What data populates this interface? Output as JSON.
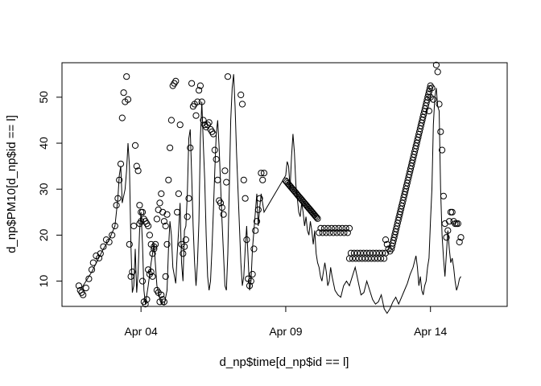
{
  "chart_data": {
    "type": "scatter",
    "title": "",
    "xlabel": "d_np$time[d_np$id == l]",
    "ylabel": "d_np$PM10[d_np$id == l]",
    "x_unit": "days of April (x = 1 is Apr 01 00:00)",
    "xlim": [
      1.27,
      16.65
    ],
    "ylim": [
      4.5,
      57.5
    ],
    "x_ticks": [
      {
        "value": 4,
        "label": "Apr 04"
      },
      {
        "value": 9,
        "label": "Apr 09"
      },
      {
        "value": 14,
        "label": "Apr 14"
      }
    ],
    "y_ticks": [
      10,
      20,
      30,
      40,
      50
    ],
    "grid": false,
    "legend": "none",
    "colors": {
      "points": "#000000",
      "line": "#000000",
      "axis": "#000000"
    },
    "points": [
      [
        1.85,
        9
      ],
      [
        1.9,
        8
      ],
      [
        1.95,
        7.5
      ],
      [
        2.0,
        7
      ],
      [
        2.1,
        8.5
      ],
      [
        2.2,
        10.5
      ],
      [
        2.3,
        12.5
      ],
      [
        2.35,
        14
      ],
      [
        2.45,
        15.5
      ],
      [
        2.55,
        15
      ],
      [
        2.6,
        16
      ],
      [
        2.7,
        17.5
      ],
      [
        2.8,
        19
      ],
      [
        2.9,
        18.5
      ],
      [
        3.0,
        20
      ],
      [
        3.1,
        22
      ],
      [
        3.15,
        26.5
      ],
      [
        3.2,
        28
      ],
      [
        3.25,
        32
      ],
      [
        3.3,
        35.5
      ],
      [
        3.35,
        45.5
      ],
      [
        3.4,
        51
      ],
      [
        3.45,
        49
      ],
      [
        3.5,
        54.5
      ],
      [
        3.55,
        49.5
      ],
      [
        3.6,
        18
      ],
      [
        3.65,
        11
      ],
      [
        3.7,
        12
      ],
      [
        3.75,
        22
      ],
      [
        3.8,
        39.5
      ],
      [
        3.85,
        35
      ],
      [
        3.9,
        34
      ],
      [
        3.95,
        26.5
      ],
      [
        4.0,
        23
      ],
      [
        4.05,
        10
      ],
      [
        4.1,
        5.5
      ],
      [
        4.15,
        5
      ],
      [
        4.2,
        6
      ],
      [
        4.25,
        12.5
      ],
      [
        4.3,
        11.5
      ],
      [
        4.35,
        12
      ],
      [
        4.4,
        11
      ],
      [
        4.45,
        17
      ],
      [
        4.5,
        18
      ],
      [
        4.55,
        8
      ],
      [
        4.6,
        7.5
      ],
      [
        4.65,
        5.5
      ],
      [
        4.7,
        7
      ],
      [
        4.75,
        6
      ],
      [
        4.8,
        5.5
      ],
      [
        4.85,
        11
      ],
      [
        4.9,
        18
      ],
      [
        3.95,
        22.5
      ],
      [
        4.0,
        25
      ],
      [
        4.05,
        25
      ],
      [
        4.1,
        23.5
      ],
      [
        4.15,
        23
      ],
      [
        4.2,
        22.5
      ],
      [
        4.25,
        22
      ],
      [
        4.3,
        20
      ],
      [
        4.35,
        18
      ],
      [
        4.4,
        16
      ],
      [
        4.45,
        17.5
      ],
      [
        4.55,
        23.5
      ],
      [
        4.6,
        25.5
      ],
      [
        4.65,
        27
      ],
      [
        4.7,
        29
      ],
      [
        4.75,
        25
      ],
      [
        4.8,
        23
      ],
      [
        4.85,
        22
      ],
      [
        4.9,
        24.5
      ],
      [
        4.95,
        32
      ],
      [
        5.0,
        39
      ],
      [
        5.05,
        45
      ],
      [
        5.1,
        52.5
      ],
      [
        5.15,
        53
      ],
      [
        5.2,
        53.5
      ],
      [
        5.25,
        25
      ],
      [
        5.3,
        29
      ],
      [
        5.35,
        44
      ],
      [
        5.4,
        18
      ],
      [
        5.45,
        16
      ],
      [
        5.5,
        17.5
      ],
      [
        5.55,
        19
      ],
      [
        5.6,
        24
      ],
      [
        5.65,
        28
      ],
      [
        5.7,
        39
      ],
      [
        5.75,
        53
      ],
      [
        5.8,
        48
      ],
      [
        5.85,
        48.5
      ],
      [
        5.9,
        46
      ],
      [
        5.95,
        49
      ],
      [
        6.0,
        51.5
      ],
      [
        6.05,
        52.5
      ],
      [
        6.1,
        49
      ],
      [
        6.15,
        45
      ],
      [
        6.2,
        44
      ],
      [
        6.25,
        43.5
      ],
      [
        6.3,
        44
      ],
      [
        6.35,
        44.5
      ],
      [
        6.4,
        43
      ],
      [
        6.45,
        42.5
      ],
      [
        6.5,
        42
      ],
      [
        6.55,
        38.5
      ],
      [
        6.6,
        36.5
      ],
      [
        6.65,
        32
      ],
      [
        6.7,
        27.5
      ],
      [
        6.75,
        27
      ],
      [
        6.8,
        26
      ],
      [
        6.85,
        24.5
      ],
      [
        6.9,
        34
      ],
      [
        6.95,
        31.5
      ],
      [
        7.0,
        54.5
      ],
      [
        7.45,
        50.5
      ],
      [
        7.5,
        48.5
      ],
      [
        7.55,
        32
      ],
      [
        7.6,
        28
      ],
      [
        7.65,
        19
      ],
      [
        7.7,
        10.5
      ],
      [
        7.75,
        9
      ],
      [
        7.8,
        10
      ],
      [
        7.85,
        11.5
      ],
      [
        7.9,
        17
      ],
      [
        7.95,
        21
      ],
      [
        8.0,
        23
      ],
      [
        8.05,
        25.5
      ],
      [
        8.1,
        28
      ],
      [
        8.15,
        33.5
      ],
      [
        8.2,
        32
      ],
      [
        8.25,
        33.5
      ],
      [
        12.45,
        19
      ],
      [
        12.5,
        18
      ],
      [
        12.55,
        17
      ],
      [
        12.6,
        16.5
      ],
      [
        13.95,
        47
      ],
      [
        14.0,
        50
      ],
      [
        14.05,
        52
      ],
      [
        14.1,
        49.5
      ],
      [
        14.2,
        57
      ],
      [
        14.25,
        55.5
      ],
      [
        14.3,
        48.5
      ],
      [
        14.35,
        42.5
      ],
      [
        14.4,
        38.5
      ],
      [
        14.45,
        28.5
      ],
      [
        14.5,
        22.5
      ],
      [
        14.55,
        19.5
      ],
      [
        14.6,
        21
      ],
      [
        14.65,
        23
      ],
      [
        14.7,
        25
      ],
      [
        14.75,
        25
      ],
      [
        14.8,
        23
      ],
      [
        14.85,
        22.5
      ],
      [
        14.9,
        22.5
      ],
      [
        14.95,
        22.5
      ],
      [
        15.0,
        18.5
      ],
      [
        15.05,
        19.5
      ]
    ],
    "point_runs": [
      {
        "x_start": 9.0,
        "x_end": 10.1,
        "y_start": 31.8,
        "y_end": 23.6,
        "count": 32
      },
      {
        "x_start": 10.15,
        "x_end": 11.2,
        "y": 21,
        "count": 18
      },
      {
        "x_start": 11.2,
        "x_end": 12.45,
        "y": 15.5,
        "count": 24
      },
      {
        "x_start": 12.65,
        "x_end": 14.0,
        "y_start": 17,
        "y_end": 52.5,
        "count": 58
      }
    ],
    "line": [
      [
        1.9,
        8
      ],
      [
        2.1,
        10
      ],
      [
        2.3,
        12
      ],
      [
        2.5,
        14.5
      ],
      [
        2.7,
        17
      ],
      [
        2.9,
        19
      ],
      [
        3.1,
        22
      ],
      [
        3.2,
        28
      ],
      [
        3.25,
        33
      ],
      [
        3.3,
        35
      ],
      [
        3.35,
        27
      ],
      [
        3.45,
        30
      ],
      [
        3.5,
        34
      ],
      [
        3.55,
        40
      ],
      [
        3.6,
        35
      ],
      [
        3.65,
        18
      ],
      [
        3.7,
        7.5
      ],
      [
        3.75,
        9
      ],
      [
        3.8,
        17
      ],
      [
        3.85,
        7.5
      ],
      [
        3.9,
        12
      ],
      [
        3.95,
        21
      ],
      [
        4.0,
        25
      ],
      [
        4.05,
        18
      ],
      [
        4.1,
        8
      ],
      [
        4.15,
        5
      ],
      [
        4.25,
        9
      ],
      [
        4.35,
        14
      ],
      [
        4.45,
        18
      ],
      [
        4.55,
        9
      ],
      [
        4.7,
        5
      ],
      [
        4.8,
        4.8
      ],
      [
        4.9,
        8
      ],
      [
        4.95,
        17
      ],
      [
        5.0,
        23
      ],
      [
        5.05,
        20
      ],
      [
        5.1,
        13
      ],
      [
        5.2,
        9.5
      ],
      [
        5.25,
        16
      ],
      [
        5.3,
        21
      ],
      [
        5.35,
        27
      ],
      [
        5.4,
        14
      ],
      [
        5.45,
        10
      ],
      [
        5.5,
        21
      ],
      [
        5.55,
        22
      ],
      [
        5.6,
        29
      ],
      [
        5.65,
        41
      ],
      [
        5.7,
        43
      ],
      [
        5.75,
        33
      ],
      [
        5.8,
        22
      ],
      [
        5.85,
        14
      ],
      [
        5.9,
        9
      ],
      [
        5.95,
        14
      ],
      [
        6.0,
        23
      ],
      [
        6.05,
        41
      ],
      [
        6.1,
        49
      ],
      [
        6.15,
        40
      ],
      [
        6.2,
        32
      ],
      [
        6.25,
        20
      ],
      [
        6.3,
        11
      ],
      [
        6.35,
        8
      ],
      [
        6.4,
        10
      ],
      [
        6.45,
        17
      ],
      [
        6.5,
        25
      ],
      [
        6.55,
        34
      ],
      [
        6.6,
        42
      ],
      [
        6.65,
        45
      ],
      [
        6.7,
        39
      ],
      [
        6.75,
        31
      ],
      [
        6.8,
        23
      ],
      [
        6.85,
        16
      ],
      [
        6.9,
        9
      ],
      [
        6.95,
        8
      ],
      [
        7.0,
        16
      ],
      [
        7.05,
        30
      ],
      [
        7.1,
        45
      ],
      [
        7.15,
        52
      ],
      [
        7.2,
        55
      ],
      [
        7.25,
        48
      ],
      [
        7.3,
        38
      ],
      [
        7.35,
        30
      ],
      [
        7.4,
        22
      ],
      [
        7.45,
        14
      ],
      [
        7.5,
        9
      ],
      [
        7.55,
        11
      ],
      [
        7.6,
        17
      ],
      [
        7.65,
        22
      ],
      [
        7.7,
        15
      ],
      [
        7.75,
        8
      ],
      [
        7.8,
        10
      ],
      [
        7.85,
        17
      ],
      [
        7.9,
        21
      ],
      [
        7.95,
        25
      ],
      [
        8.0,
        29
      ],
      [
        8.05,
        22
      ],
      [
        8.1,
        26
      ],
      [
        8.15,
        29
      ],
      [
        8.2,
        27
      ],
      [
        8.25,
        25
      ],
      [
        9.0,
        33
      ],
      [
        9.05,
        36
      ],
      [
        9.1,
        35
      ],
      [
        9.15,
        30
      ],
      [
        9.2,
        37
      ],
      [
        9.25,
        42
      ],
      [
        9.3,
        38
      ],
      [
        9.35,
        31
      ],
      [
        9.4,
        28
      ],
      [
        9.45,
        25
      ],
      [
        9.5,
        24
      ],
      [
        9.55,
        27
      ],
      [
        9.6,
        25
      ],
      [
        9.65,
        22
      ],
      [
        9.7,
        24
      ],
      [
        9.75,
        21
      ],
      [
        9.8,
        20
      ],
      [
        9.85,
        23
      ],
      [
        9.9,
        21
      ],
      [
        9.95,
        18
      ],
      [
        10.0,
        21
      ],
      [
        10.05,
        16
      ],
      [
        10.1,
        14
      ],
      [
        10.15,
        13
      ],
      [
        10.2,
        11
      ],
      [
        10.25,
        10
      ],
      [
        10.3,
        12
      ],
      [
        10.35,
        14
      ],
      [
        10.4,
        12
      ],
      [
        10.45,
        9
      ],
      [
        10.5,
        10
      ],
      [
        10.55,
        13
      ],
      [
        10.6,
        11
      ],
      [
        10.7,
        8
      ],
      [
        10.8,
        7
      ],
      [
        10.9,
        6.5
      ],
      [
        11.0,
        9
      ],
      [
        11.1,
        10
      ],
      [
        11.2,
        9
      ],
      [
        11.3,
        11
      ],
      [
        11.4,
        13
      ],
      [
        11.5,
        10
      ],
      [
        11.6,
        7
      ],
      [
        11.7,
        7.5
      ],
      [
        11.8,
        10
      ],
      [
        11.9,
        8
      ],
      [
        12.0,
        6
      ],
      [
        12.1,
        5
      ],
      [
        12.2,
        5.5
      ],
      [
        12.3,
        7
      ],
      [
        12.4,
        4
      ],
      [
        12.5,
        3
      ],
      [
        12.6,
        4
      ],
      [
        12.7,
        5.5
      ],
      [
        12.8,
        6.5
      ],
      [
        12.9,
        5
      ],
      [
        13.0,
        6.5
      ],
      [
        13.1,
        8
      ],
      [
        13.2,
        9.5
      ],
      [
        13.3,
        11.5
      ],
      [
        13.4,
        13
      ],
      [
        13.5,
        15.5
      ],
      [
        13.55,
        13
      ],
      [
        13.6,
        9
      ],
      [
        13.65,
        11
      ],
      [
        13.7,
        8
      ],
      [
        13.75,
        7
      ],
      [
        13.8,
        9
      ],
      [
        13.85,
        10
      ],
      [
        13.9,
        13
      ],
      [
        13.95,
        15
      ],
      [
        14.0,
        23
      ],
      [
        14.05,
        30
      ],
      [
        14.1,
        44
      ],
      [
        14.15,
        50
      ],
      [
        14.2,
        52
      ],
      [
        14.25,
        48
      ],
      [
        14.3,
        47
      ],
      [
        14.35,
        30
      ],
      [
        14.4,
        20
      ],
      [
        14.45,
        15
      ],
      [
        14.5,
        11
      ],
      [
        14.55,
        16
      ],
      [
        14.6,
        21
      ],
      [
        14.65,
        17
      ],
      [
        14.7,
        14
      ],
      [
        14.75,
        15
      ],
      [
        14.8,
        13
      ],
      [
        14.85,
        10
      ],
      [
        14.9,
        8
      ],
      [
        14.95,
        9
      ],
      [
        15.0,
        10.5
      ],
      [
        15.05,
        11
      ]
    ]
  }
}
